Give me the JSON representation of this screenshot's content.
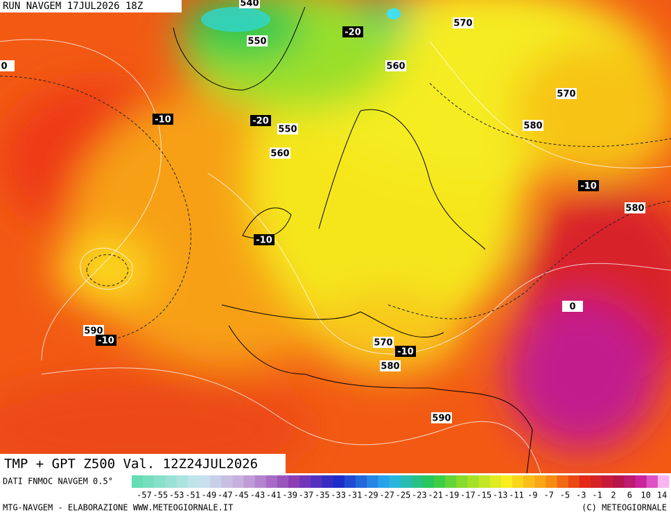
{
  "header": {
    "run": "RUN NAVGEM 17JUL2026 18Z"
  },
  "contour_labels": [
    "540",
    "550",
    "-20",
    "570",
    "0",
    "560",
    "570",
    "-10",
    "-20",
    "550",
    "580",
    "560",
    "-10",
    "580",
    "-10",
    "0",
    "590",
    "-10",
    "570",
    "-10",
    "580",
    "590"
  ],
  "product": "TMP + GPT Z500 Val. 12Z24JUL2026",
  "colorbar": {
    "source": "DATI FNMOC NAVGEM 0.5°",
    "labels": [
      "-57",
      "-55",
      "-53",
      "-51",
      "-49",
      "-47",
      "-45",
      "-43",
      "-41",
      "-39",
      "-37",
      "-35",
      "-33",
      "-31",
      "-29",
      "-27",
      "-25",
      "-23",
      "-21",
      "-19",
      "-17",
      "-15",
      "-13",
      "-11",
      "-9",
      "-7",
      "-5",
      "-3",
      "-1",
      "2",
      "6",
      "10",
      "14"
    ]
  },
  "footer": {
    "left": "MTG-NAVGEM - ELABORAZIONE WWW.METEOGIORNALE.IT",
    "right": "(C) METEOGIORNALE"
  }
}
